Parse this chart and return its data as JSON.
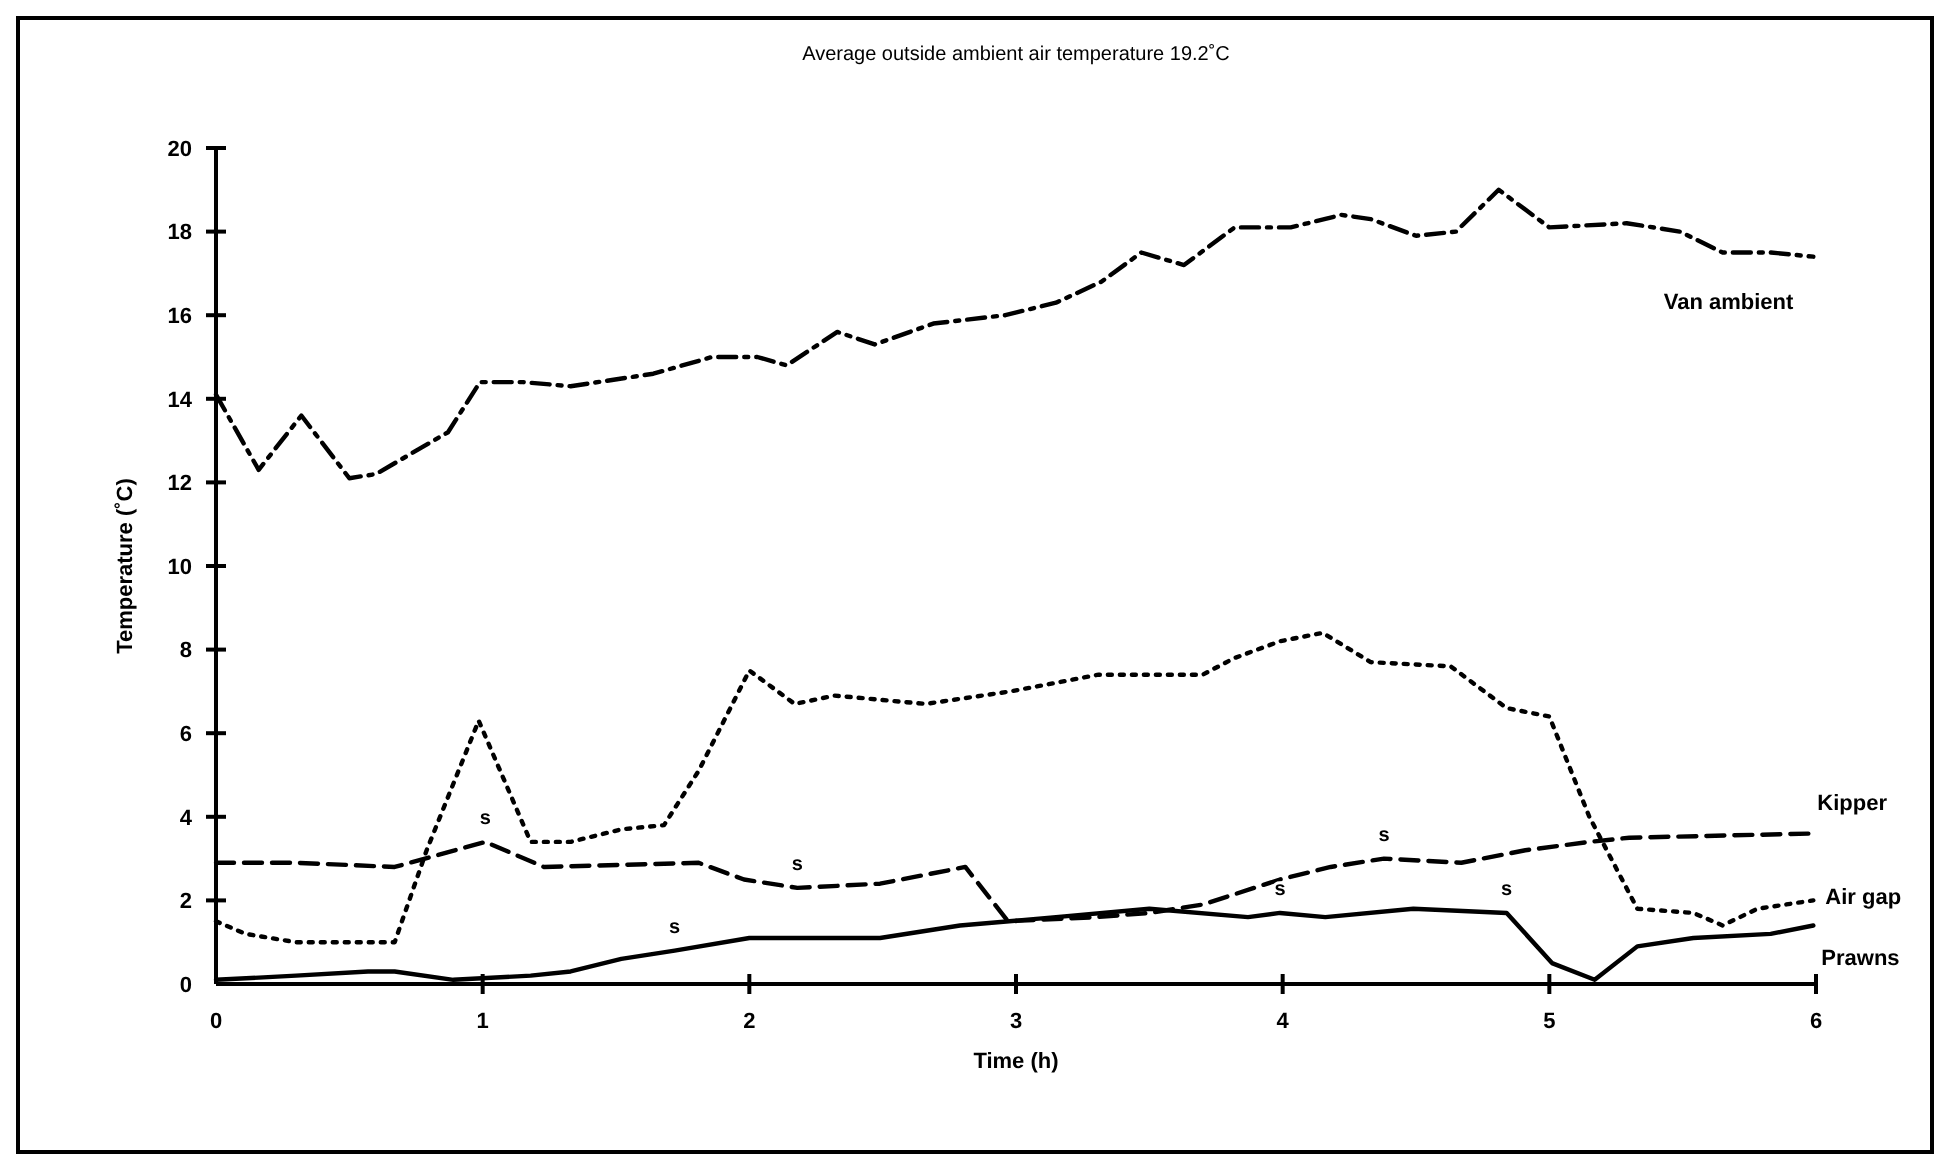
{
  "chart_data": {
    "type": "line",
    "title": "Average outside ambient air temperature 19.2˚C",
    "xlabel": "Time (h)",
    "ylabel": "Temperature (˚C)",
    "xlim": [
      0,
      6
    ],
    "xticks": [
      0,
      1,
      2,
      3,
      4,
      5,
      6
    ],
    "ylim": [
      0,
      20
    ],
    "yticks": [
      0,
      2,
      4,
      6,
      8,
      10,
      12,
      14,
      16,
      18,
      20
    ],
    "grid": false,
    "legend": false,
    "marker": "none",
    "series": [
      {
        "name": "Van ambient",
        "color": "#000000",
        "line_style": "dashdot",
        "x": [
          0,
          0.16,
          0.32,
          0.5,
          0.6,
          0.87,
          0.99,
          1.15,
          1.33,
          1.64,
          1.86,
          2.03,
          2.14,
          2.33,
          2.47,
          2.69,
          2.96,
          3.15,
          3.32,
          3.47,
          3.63,
          3.82,
          4.03,
          4.22,
          4.33,
          4.5,
          4.65,
          4.81,
          5.0,
          5.29,
          5.49,
          5.65,
          5.83,
          5.99
        ],
        "values": [
          14.1,
          12.3,
          13.6,
          12.1,
          12.2,
          13.2,
          14.4,
          14.4,
          14.3,
          14.6,
          15.0,
          15.0,
          14.8,
          15.6,
          15.3,
          15.8,
          16.0,
          16.3,
          16.8,
          17.5,
          17.2,
          18.1,
          18.1,
          18.4,
          18.3,
          17.9,
          18.0,
          19.0,
          18.1,
          18.2,
          18.0,
          17.5,
          17.5,
          17.4
        ]
      },
      {
        "name": "Kipper",
        "color": "#000000",
        "line_style": "dashed",
        "x": [
          0,
          0.3,
          0.67,
          1.01,
          1.23,
          1.81,
          1.98,
          2.18,
          2.49,
          2.81,
          2.97,
          3.3,
          3.5,
          3.7,
          3.99,
          4.18,
          4.38,
          4.67,
          4.91,
          5.15,
          5.3,
          5.99
        ],
        "values": [
          2.9,
          2.9,
          2.8,
          3.4,
          2.8,
          2.9,
          2.5,
          2.3,
          2.4,
          2.8,
          1.5,
          1.6,
          1.7,
          1.9,
          2.5,
          2.8,
          3.0,
          2.9,
          3.2,
          3.4,
          3.5,
          3.6
        ]
      },
      {
        "name": "Air gap",
        "color": "#000000",
        "line_style": "dotted",
        "x": [
          0,
          0.11,
          0.3,
          0.67,
          0.79,
          0.985,
          1.18,
          1.33,
          1.52,
          1.68,
          1.81,
          2.0,
          2.17,
          2.32,
          2.66,
          2.98,
          3.31,
          3.7,
          3.82,
          3.99,
          4.15,
          4.33,
          4.63,
          4.84,
          5.0,
          5.15,
          5.33,
          5.54,
          5.65,
          5.78,
          5.99
        ],
        "values": [
          1.5,
          1.2,
          1.0,
          1.0,
          3.2,
          6.3,
          3.4,
          3.4,
          3.7,
          3.8,
          5.1,
          7.5,
          6.7,
          6.9,
          6.7,
          7.0,
          7.4,
          7.4,
          7.8,
          8.2,
          8.4,
          7.7,
          7.6,
          6.6,
          6.4,
          4.0,
          1.8,
          1.7,
          1.4,
          1.8,
          2.0
        ]
      },
      {
        "name": "Prawns",
        "color": "#000000",
        "line_style": "solid",
        "x": [
          0,
          0.3,
          0.57,
          0.67,
          0.89,
          1.18,
          1.33,
          1.52,
          1.72,
          2.0,
          2.49,
          2.79,
          3.15,
          3.5,
          3.87,
          3.99,
          4.16,
          4.49,
          4.84,
          5.01,
          5.17,
          5.33,
          5.54,
          5.83,
          5.99
        ],
        "values": [
          0.1,
          0.2,
          0.3,
          0.3,
          0.1,
          0.2,
          0.3,
          0.6,
          0.8,
          1.1,
          1.1,
          1.4,
          1.6,
          1.8,
          1.6,
          1.7,
          1.6,
          1.8,
          1.7,
          0.5,
          0.1,
          0.9,
          1.1,
          1.2,
          1.4
        ]
      }
    ],
    "annotations": [
      {
        "text": "s",
        "x": 1.01,
        "y": 3.4
      },
      {
        "text": "s",
        "x": 2.18,
        "y": 2.3
      },
      {
        "text": "s",
        "x": 1.72,
        "y": 0.8
      },
      {
        "text": "s",
        "x": 4.38,
        "y": 3.0
      },
      {
        "text": "s",
        "x": 3.99,
        "y": 1.7
      },
      {
        "text": "s",
        "x": 4.84,
        "y": 1.7
      }
    ]
  }
}
